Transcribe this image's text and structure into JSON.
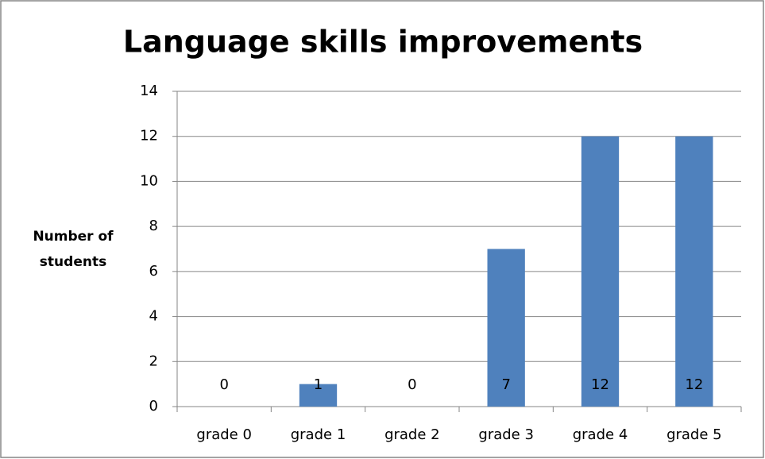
{
  "chart_data": {
    "type": "bar",
    "title": "Language skills improvements",
    "ylabel": [
      "Number of",
      "students"
    ],
    "categories": [
      "grade 0",
      "grade 1",
      "grade 2",
      "grade 3",
      "grade 4",
      "grade 5"
    ],
    "values": [
      0,
      1,
      0,
      7,
      12,
      12
    ],
    "color": "#4f81bd",
    "ylim": [
      0,
      14
    ],
    "yticks": [
      0,
      2,
      4,
      6,
      8,
      10,
      12,
      14
    ],
    "grid": true
  }
}
